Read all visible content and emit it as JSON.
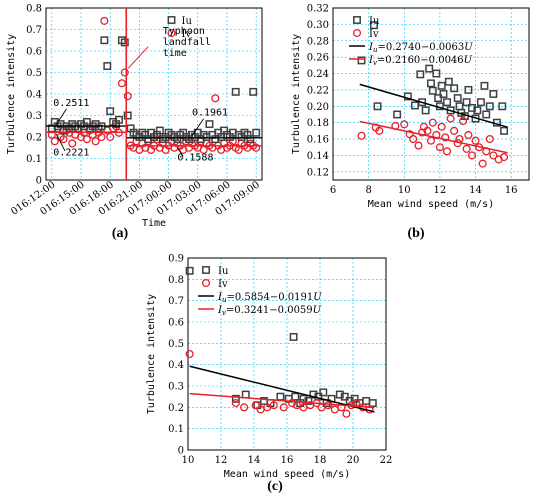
{
  "chart_data": [
    {
      "type": "scatter",
      "panel_label": "(a)",
      "xlabel": "Time",
      "ylabel": "Turbulence intensity",
      "ylim": [
        0,
        0.8
      ],
      "yticks": [
        "0",
        "0.1",
        "0.2",
        "0.3",
        "0.4",
        "0.5",
        "0.6",
        "0.7",
        "0.8"
      ],
      "xticks": [
        "016:12:00",
        "016:15:00",
        "016:18:00",
        "016:21:00",
        "017:00:00",
        "017:03:00",
        "017:06:00",
        "017:09:00"
      ],
      "grid": true,
      "legend": [
        "Iu",
        "Iv"
      ],
      "annotations": [
        {
          "text": "0.2511"
        },
        {
          "text": "0.2221"
        },
        {
          "text": "0.1961"
        },
        {
          "text": "0.1588"
        },
        {
          "text_lines": [
            "Typhoon",
            "landfall",
            "time"
          ]
        }
      ],
      "means": {
        "Iu_before": 0.2511,
        "Iv_before": 0.2221,
        "Iu_after": 0.1961,
        "Iv_after": 0.1588
      },
      "landfall_x": 2.55,
      "series": [
        {
          "name": "Iu",
          "color": "#404040",
          "x": [
            0,
            0.1,
            0.2,
            0.3,
            0.4,
            0.5,
            0.6,
            0.7,
            0.8,
            0.9,
            1.0,
            1.1,
            1.2,
            1.3,
            1.4,
            1.5,
            1.6,
            1.7,
            1.8,
            1.9,
            2.0,
            2.1,
            2.2,
            2.3,
            2.4,
            2.5,
            2.6,
            2.7,
            2.8,
            2.9,
            3.0,
            3.1,
            3.2,
            3.3,
            3.4,
            3.5,
            3.6,
            3.7,
            3.8,
            3.9,
            4.0,
            4.1,
            4.2,
            4.3,
            4.4,
            4.5,
            4.6,
            4.7,
            4.8,
            4.9,
            5.0,
            5.1,
            5.2,
            5.3,
            5.4,
            5.5,
            5.6,
            5.7,
            5.8,
            5.9,
            6.0,
            6.1,
            6.2,
            6.3,
            6.4,
            6.5,
            6.6,
            6.7,
            6.8,
            6.9,
            7.0
          ],
          "y": [
            0.24,
            0.27,
            0.25,
            0.26,
            0.23,
            0.25,
            0.24,
            0.26,
            0.25,
            0.24,
            0.26,
            0.25,
            0.27,
            0.24,
            0.25,
            0.26,
            0.24,
            0.25,
            0.65,
            0.53,
            0.32,
            0.27,
            0.26,
            0.28,
            0.65,
            0.64,
            0.3,
            0.24,
            0.22,
            0.21,
            0.2,
            0.22,
            0.21,
            0.19,
            0.22,
            0.2,
            0.21,
            0.23,
            0.19,
            0.2,
            0.22,
            0.21,
            0.2,
            0.19,
            0.21,
            0.22,
            0.2,
            0.19,
            0.21,
            0.2,
            0.22,
            0.19,
            0.21,
            0.2,
            0.26,
            0.21,
            0.19,
            0.22,
            0.2,
            0.23,
            0.21,
            0.2,
            0.22,
            0.41,
            0.21,
            0.2,
            0.22,
            0.21,
            0.19,
            0.41,
            0.22
          ]
        },
        {
          "name": "Iv",
          "color": "#e8202a",
          "x": [
            0,
            0.1,
            0.2,
            0.3,
            0.4,
            0.5,
            0.6,
            0.7,
            0.8,
            0.9,
            1.0,
            1.1,
            1.2,
            1.3,
            1.4,
            1.5,
            1.6,
            1.7,
            1.8,
            1.9,
            2.0,
            2.1,
            2.2,
            2.3,
            2.4,
            2.5,
            2.6,
            2.7,
            2.8,
            2.9,
            3.0,
            3.1,
            3.2,
            3.3,
            3.4,
            3.5,
            3.6,
            3.7,
            3.8,
            3.9,
            4.0,
            4.1,
            4.2,
            4.3,
            4.4,
            4.5,
            4.6,
            4.7,
            4.8,
            4.9,
            5.0,
            5.1,
            5.2,
            5.3,
            5.4,
            5.5,
            5.6,
            5.7,
            5.8,
            5.9,
            6.0,
            6.1,
            6.2,
            6.3,
            6.4,
            6.5,
            6.6,
            6.7,
            6.8,
            6.9,
            7.0
          ],
          "y": [
            0.21,
            0.18,
            0.24,
            0.2,
            0.19,
            0.23,
            0.22,
            0.17,
            0.21,
            0.24,
            0.2,
            0.22,
            0.19,
            0.23,
            0.21,
            0.18,
            0.22,
            0.2,
            0.74,
            0.23,
            0.2,
            0.24,
            0.25,
            0.22,
            0.45,
            0.5,
            0.39,
            0.16,
            0.15,
            0.18,
            0.14,
            0.17,
            0.15,
            0.18,
            0.14,
            0.16,
            0.19,
            0.15,
            0.17,
            0.14,
            0.16,
            0.18,
            0.15,
            0.17,
            0.16,
            0.14,
            0.18,
            0.15,
            0.17,
            0.16,
            0.15,
            0.18,
            0.14,
            0.17,
            0.16,
            0.15,
            0.38,
            0.16,
            0.14,
            0.17,
            0.15,
            0.16,
            0.18,
            0.15,
            0.14,
            0.17,
            0.16,
            0.15,
            0.17,
            0.16,
            0.15
          ]
        }
      ]
    },
    {
      "type": "scatter",
      "panel_label": "(b)",
      "xlabel": "Mean wind speed (m/s)",
      "ylabel": "Turbulence intensity",
      "xlim": [
        6,
        17
      ],
      "ylim": [
        0.11,
        0.32
      ],
      "xticks": [
        "6",
        "8",
        "10",
        "12",
        "14",
        "16"
      ],
      "yticks": [
        "0.12",
        "0.14",
        "0.16",
        "0.18",
        "0.20",
        "0.22",
        "0.24",
        "0.26",
        "0.28",
        "0.30",
        "0.32"
      ],
      "grid": true,
      "legend": [
        "Iu",
        "Iv",
        "I_u=0.2740−0.0063U",
        "I_v=0.2160−0.0046U"
      ],
      "fits": [
        {
          "name": "Iu fit",
          "color": "#000000",
          "intercept": 0.274,
          "slope": -0.0063,
          "xrange": [
            7.5,
            15.8
          ]
        },
        {
          "name": "Iv fit",
          "color": "#e8202a",
          "intercept": 0.216,
          "slope": -0.0046,
          "xrange": [
            7.5,
            15.8
          ]
        }
      ],
      "series": [
        {
          "name": "Iu",
          "color": "#404040",
          "x": [
            7.6,
            8.3,
            8.5,
            9.6,
            10.2,
            10.6,
            10.9,
            11.0,
            11.2,
            11.4,
            11.5,
            11.6,
            11.8,
            11.9,
            12.0,
            12.1,
            12.2,
            12.4,
            12.5,
            12.6,
            12.8,
            13.0,
            13.1,
            13.2,
            13.4,
            13.5,
            13.6,
            13.8,
            14.0,
            14.1,
            14.3,
            14.5,
            14.6,
            14.8,
            15.0,
            15.2,
            15.5,
            15.6
          ],
          "y": [
            0.256,
            0.299,
            0.2,
            0.19,
            0.212,
            0.201,
            0.239,
            0.205,
            0.195,
            0.246,
            0.228,
            0.219,
            0.24,
            0.21,
            0.2,
            0.225,
            0.215,
            0.205,
            0.23,
            0.195,
            0.222,
            0.21,
            0.2,
            0.192,
            0.188,
            0.205,
            0.22,
            0.198,
            0.185,
            0.195,
            0.205,
            0.225,
            0.19,
            0.2,
            0.215,
            0.18,
            0.2,
            0.17
          ]
        },
        {
          "name": "Iv",
          "color": "#e8202a",
          "x": [
            7.6,
            8.4,
            8.6,
            9.5,
            10.0,
            10.3,
            10.5,
            10.8,
            11.0,
            11.1,
            11.3,
            11.5,
            11.6,
            11.8,
            12.0,
            12.1,
            12.3,
            12.4,
            12.6,
            12.8,
            13.0,
            13.1,
            13.3,
            13.5,
            13.6,
            13.8,
            14.0,
            14.2,
            14.4,
            14.6,
            14.8,
            15.0,
            15.3,
            15.6
          ],
          "y": [
            0.164,
            0.174,
            0.17,
            0.176,
            0.178,
            0.166,
            0.16,
            0.152,
            0.168,
            0.175,
            0.17,
            0.158,
            0.18,
            0.165,
            0.15,
            0.175,
            0.162,
            0.145,
            0.185,
            0.17,
            0.155,
            0.16,
            0.182,
            0.148,
            0.165,
            0.14,
            0.158,
            0.15,
            0.13,
            0.145,
            0.16,
            0.14,
            0.135,
            0.138
          ]
        }
      ]
    },
    {
      "type": "scatter",
      "panel_label": "(c)",
      "xlabel": "Mean wind speed (m/s)",
      "ylabel": "Turbulence intensity",
      "xlim": [
        10,
        22
      ],
      "ylim": [
        0,
        0.9
      ],
      "xticks": [
        "10",
        "12",
        "14",
        "16",
        "18",
        "20",
        "22"
      ],
      "yticks": [
        "0",
        "0.1",
        "0.2",
        "0.3",
        "0.4",
        "0.5",
        "0.6",
        "0.7",
        "0.8",
        "0.9"
      ],
      "grid": true,
      "legend": [
        "Iu",
        "Iv",
        "I_u=0.5854−0.0191U",
        "I_v=0.3241−0.0059U"
      ],
      "fits": [
        {
          "name": "Iu fit",
          "color": "#000000",
          "intercept": 0.5854,
          "slope": -0.0191,
          "xrange": [
            10.1,
            21.3
          ]
        },
        {
          "name": "Iv fit",
          "color": "#e8202a",
          "intercept": 0.3241,
          "slope": -0.0059,
          "xrange": [
            10.1,
            21.3
          ]
        }
      ],
      "series": [
        {
          "name": "Iu",
          "color": "#404040",
          "x": [
            10.1,
            12.9,
            13.5,
            14.2,
            14.6,
            15.0,
            15.6,
            16.1,
            16.4,
            16.5,
            16.8,
            17.0,
            17.3,
            17.6,
            17.9,
            18.2,
            18.4,
            18.7,
            19.2,
            19.5,
            19.8,
            20.1,
            20.4,
            20.8,
            21.2
          ],
          "y": [
            0.84,
            0.24,
            0.26,
            0.21,
            0.23,
            0.22,
            0.25,
            0.24,
            0.53,
            0.25,
            0.22,
            0.24,
            0.23,
            0.26,
            0.25,
            0.27,
            0.22,
            0.24,
            0.26,
            0.25,
            0.23,
            0.24,
            0.22,
            0.23,
            0.22
          ]
        },
        {
          "name": "Iv",
          "color": "#e8202a",
          "x": [
            10.1,
            12.9,
            13.4,
            14.1,
            14.4,
            14.8,
            15.2,
            15.8,
            16.3,
            16.6,
            17.0,
            17.4,
            17.8,
            18.1,
            18.5,
            18.9,
            19.3,
            19.6,
            19.9,
            20.2,
            20.6,
            21.0
          ],
          "y": [
            0.45,
            0.22,
            0.2,
            0.21,
            0.19,
            0.2,
            0.21,
            0.2,
            0.22,
            0.21,
            0.2,
            0.21,
            0.22,
            0.2,
            0.21,
            0.19,
            0.2,
            0.17,
            0.21,
            0.22,
            0.2,
            0.19
          ]
        }
      ]
    }
  ]
}
